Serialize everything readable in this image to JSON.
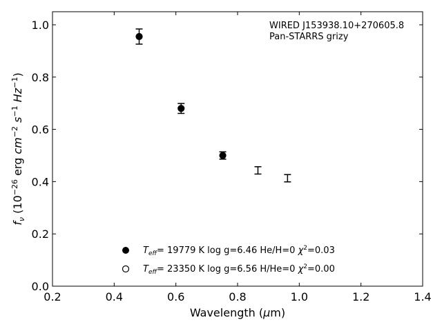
{
  "chart_data": {
    "type": "scatter",
    "xlim": [
      0.2,
      1.4
    ],
    "ylim": [
      0.0,
      1.05
    ],
    "x_ticks": [
      0.2,
      0.4,
      0.6,
      0.8,
      1.0,
      1.2,
      1.4
    ],
    "x_tick_labels": [
      "0.2",
      "0.4",
      "0.6",
      "0.8",
      "1.0",
      "1.2",
      "1.4"
    ],
    "y_ticks": [
      0.0,
      0.2,
      0.4,
      0.6,
      0.8,
      1.0
    ],
    "y_tick_labels": [
      "0.0",
      "0.2",
      "0.4",
      "0.6",
      "0.8",
      "1.0"
    ],
    "grid": false,
    "legend_position": "lower-center",
    "annotation": {
      "line1": "WIRED J153938.10+270605.8",
      "line2": "Pan-STARRS grizy"
    },
    "observed": [
      {
        "x": 0.481,
        "y": 0.955,
        "err": 0.029
      },
      {
        "x": 0.617,
        "y": 0.68,
        "err": 0.019
      },
      {
        "x": 0.752,
        "y": 0.5,
        "err": 0.014
      },
      {
        "x": 0.866,
        "y": 0.443,
        "err": 0.014
      },
      {
        "x": 0.962,
        "y": 0.413,
        "err": 0.014
      }
    ],
    "series": [
      {
        "marker": "filled",
        "label": "T_eff= 19779 K  log g=6.46  He/H=0  χ²=0.03",
        "x": [
          0.481,
          0.617,
          0.752
        ],
        "y": [
          0.955,
          0.68,
          0.5
        ]
      },
      {
        "marker": "open",
        "label": "T_eff= 23350 K  log g=6.56  H/He=0  χ²=0.00",
        "x": [],
        "y": []
      }
    ]
  }
}
